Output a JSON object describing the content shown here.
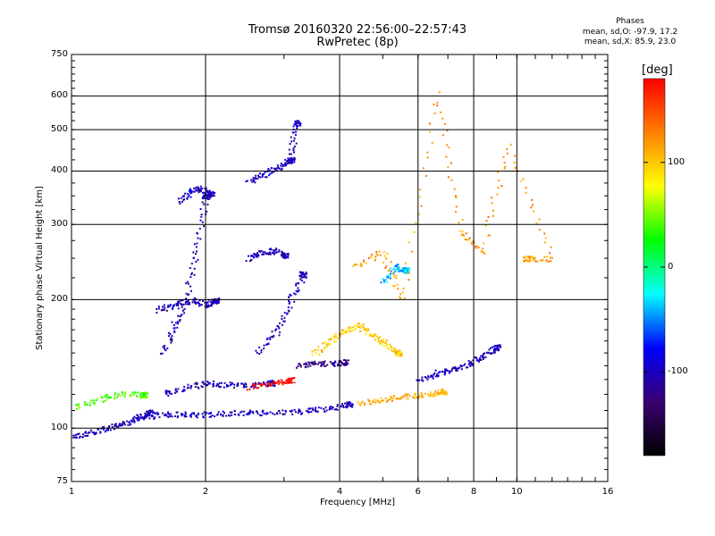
{
  "chart_data": {
    "type": "scatter",
    "title": "Tromsø 20160320 22:56:00–22:57:43",
    "subtitle": "RwPretec (8p)",
    "xlabel": "Frequency [MHz]",
    "ylabel": "Stationary phase Virtual Height [km]",
    "x_scale": "log",
    "y_scale": "log",
    "xlim": [
      1,
      16
    ],
    "ylim": [
      75,
      750
    ],
    "x_ticks": [
      "1",
      "2",
      "4",
      "6",
      "8",
      "10",
      "16"
    ],
    "y_ticks": [
      "75",
      "100",
      "200",
      "300",
      "400",
      "500",
      "600",
      "750"
    ],
    "grid": true,
    "colorbar": {
      "label": "[deg]",
      "range": [
        -180,
        180
      ],
      "ticks": [
        "100",
        "0",
        "-100"
      ],
      "colors": [
        "#000000",
        "#3a0070",
        "#0000ff",
        "#00ffff",
        "#00ff00",
        "#ffff00",
        "#ff8000",
        "#ff0000"
      ]
    },
    "stats": {
      "heading": "Phases",
      "line_o": "mean, sd,O: -97.9, 17.2",
      "line_x": "mean, sd,X: 85.9, 23.0"
    },
    "traces": [
      {
        "x": [
          1.0,
          1.1,
          1.2,
          1.3,
          1.4,
          1.5
        ],
        "y": [
          96,
          98,
          100,
          103,
          106,
          109
        ],
        "phase": -100
      },
      {
        "x": [
          1.4,
          1.6,
          1.8,
          2.0,
          2.3,
          2.6,
          3.0,
          3.4,
          3.8,
          4.2
        ],
        "y": [
          106,
          108,
          108,
          108,
          109,
          109,
          109,
          110,
          112,
          114
        ],
        "phase": -100
      },
      {
        "x": [
          1.0,
          1.15,
          1.3,
          1.45
        ],
        "y": [
          112,
          117,
          121,
          120
        ],
        "phase": 40
      },
      {
        "x": [
          1.6,
          1.7,
          1.8,
          1.9,
          2.0
        ],
        "y": [
          150,
          175,
          200,
          260,
          350
        ],
        "phase": -100
      },
      {
        "x": [
          1.75,
          1.85,
          1.95,
          2.05
        ],
        "y": [
          340,
          360,
          365,
          355
        ],
        "phase": -100
      },
      {
        "x": [
          1.55,
          1.7,
          1.85,
          2.0,
          2.1
        ],
        "y": [
          190,
          195,
          200,
          195,
          200
        ],
        "phase": -100
      },
      {
        "x": [
          1.6,
          1.8,
          2.0,
          2.2,
          2.5,
          2.8
        ],
        "y": [
          120,
          125,
          128,
          127,
          126,
          128
        ],
        "phase": -100
      },
      {
        "x": [
          2.5,
          2.7,
          2.9,
          3.1
        ],
        "y": [
          380,
          395,
          410,
          425
        ],
        "phase": -100
      },
      {
        "x": [
          3.1,
          3.2
        ],
        "y": [
          440,
          520
        ],
        "phase": -100
      },
      {
        "x": [
          2.5,
          2.65,
          2.85,
          3.0
        ],
        "y": [
          250,
          258,
          262,
          255
        ],
        "phase": -100
      },
      {
        "x": [
          2.6,
          2.9,
          3.1,
          3.3
        ],
        "y": [
          150,
          170,
          200,
          230
        ],
        "phase": -100
      },
      {
        "x": [
          2.5,
          2.8,
          3.1
        ],
        "y": [
          125,
          128,
          130
        ],
        "phase": 180
      },
      {
        "x": [
          3.2,
          3.5,
          3.8,
          4.1
        ],
        "y": [
          140,
          142,
          142,
          143
        ],
        "phase": -120
      },
      {
        "x": [
          3.5,
          3.8,
          4.1,
          4.4,
          4.7,
          5.0,
          5.4
        ],
        "y": [
          150,
          160,
          170,
          175,
          165,
          160,
          150
        ],
        "phase": 100
      },
      {
        "x": [
          4.4,
          5.0,
          5.6,
          6.2,
          6.8
        ],
        "y": [
          115,
          117,
          119,
          120,
          122
        ],
        "phase": 110
      },
      {
        "x": [
          6.0,
          6.6,
          7.2,
          7.8,
          8.4,
          9.0
        ],
        "y": [
          130,
          135,
          138,
          142,
          148,
          155
        ],
        "phase": -100
      },
      {
        "x": [
          5.0,
          5.3,
          5.6
        ],
        "y": [
          220,
          240,
          235
        ],
        "phase": -40
      },
      {
        "x": [
          4.3,
          5.0,
          5.5,
          6.6,
          7.5,
          8.3,
          9.5,
          12.0,
          10.5
        ],
        "y": [
          240,
          260,
          200,
          610,
          290,
          260,
          460,
          250,
          250
        ],
        "phase": 120
      }
    ]
  }
}
